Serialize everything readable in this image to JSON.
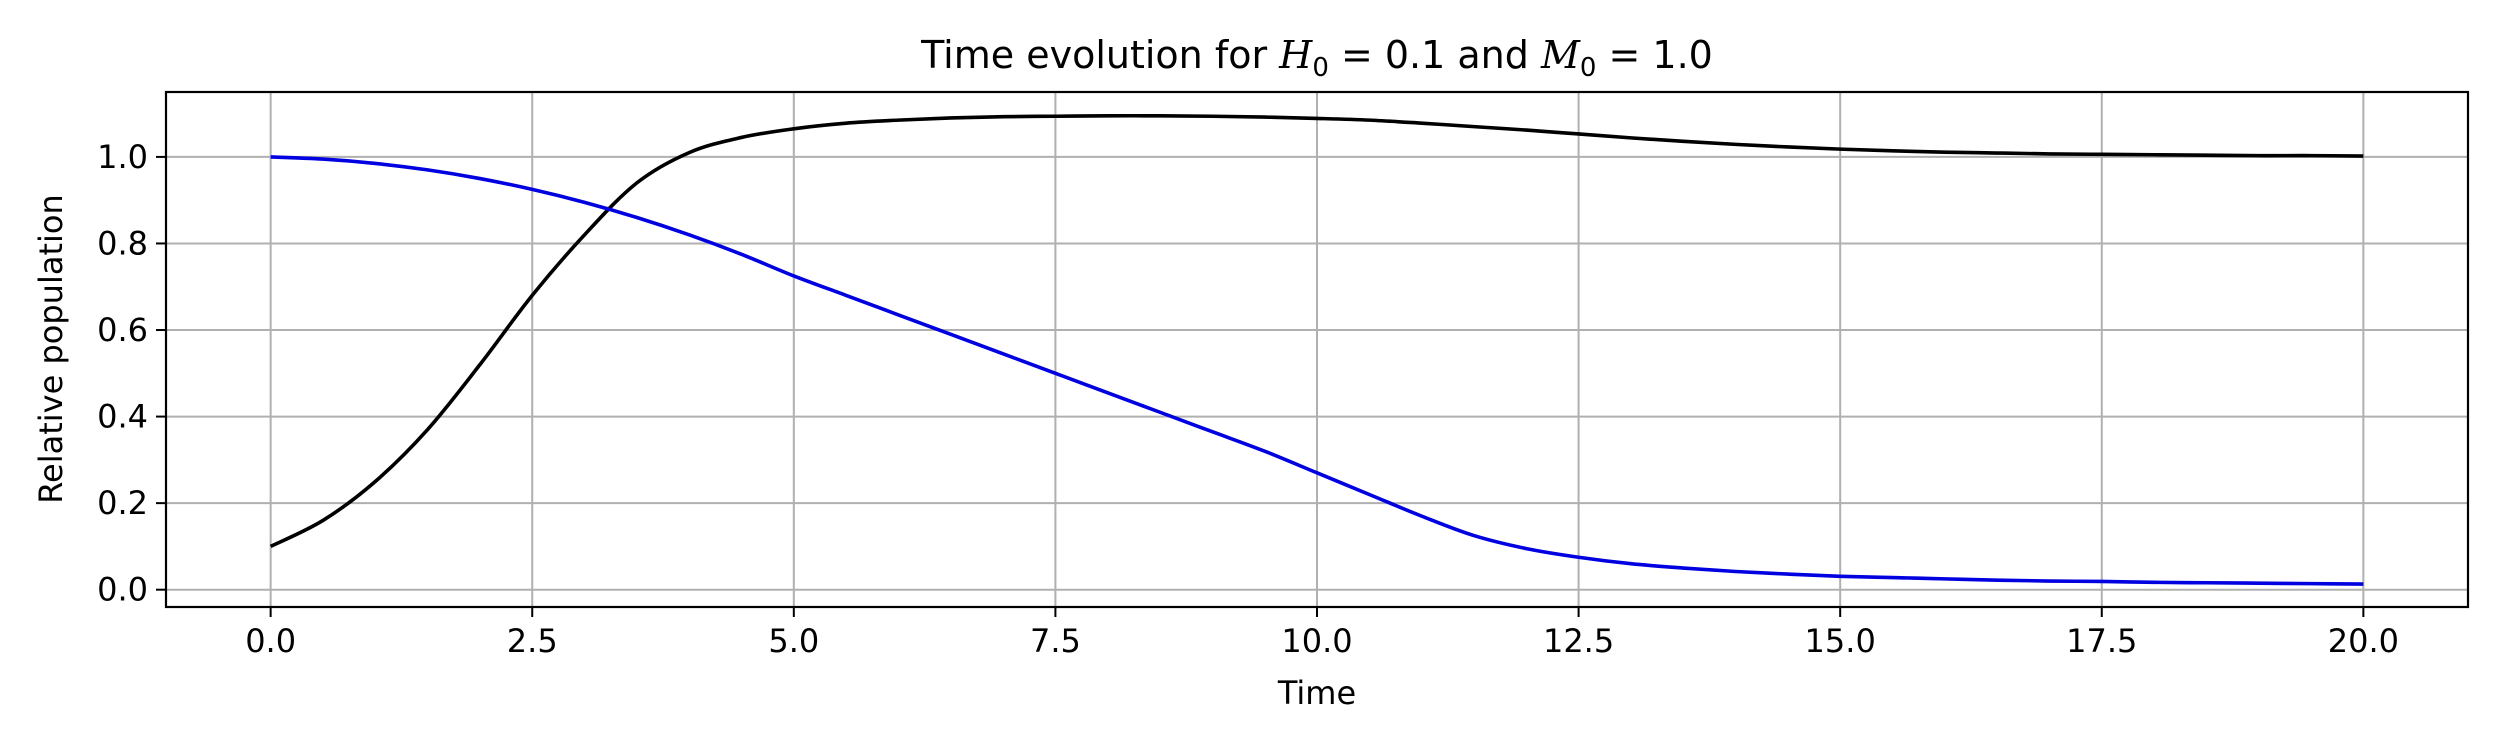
{
  "chart_data": {
    "type": "line",
    "title": {
      "prefix": "Time evolution for ",
      "h_symbol": "H",
      "h_subscript": "0",
      "h_value": " = 0.1 and ",
      "m_symbol": "M",
      "m_subscript": "0",
      "m_value": " = 1.0"
    },
    "xlabel": "Time",
    "ylabel": "Relative population",
    "xlim": [
      -1.0,
      21.0
    ],
    "ylim": [
      -0.04,
      1.15
    ],
    "xticks": [
      0.0,
      2.5,
      5.0,
      7.5,
      10.0,
      12.5,
      15.0,
      17.5,
      20.0
    ],
    "xtick_labels": [
      "0.0",
      "2.5",
      "5.0",
      "7.5",
      "10.0",
      "12.5",
      "15.0",
      "17.5",
      "20.0"
    ],
    "yticks": [
      0.0,
      0.2,
      0.4,
      0.6,
      0.8,
      1.0
    ],
    "ytick_labels": [
      "0.0",
      "0.2",
      "0.4",
      "0.6",
      "0.8",
      "1.0"
    ],
    "grid": true,
    "legend": false,
    "series": [
      {
        "color": "#000000",
        "x": [
          0,
          0.5,
          1,
          1.5,
          2,
          2.5,
          3,
          3.5,
          4,
          4.5,
          5,
          5.5,
          6,
          6.5,
          7,
          7.5,
          8,
          8.5,
          9,
          9.5,
          10,
          10.5,
          11,
          11.5,
          12,
          12.5,
          13,
          13.5,
          14,
          14.5,
          15,
          15.5,
          16,
          16.5,
          17,
          17.5,
          18,
          18.5,
          19,
          19.5,
          20
        ],
        "y": [
          0.1,
          0.16,
          0.25,
          0.37,
          0.52,
          0.68,
          0.82,
          0.94,
          1.01,
          1.045,
          1.065,
          1.078,
          1.085,
          1.09,
          1.093,
          1.094,
          1.095,
          1.095,
          1.094,
          1.092,
          1.089,
          1.085,
          1.078,
          1.07,
          1.062,
          1.053,
          1.044,
          1.036,
          1.029,
          1.023,
          1.018,
          1.014,
          1.011,
          1.009,
          1.007,
          1.006,
          1.005,
          1.004,
          1.003,
          1.003,
          1.002
        ]
      },
      {
        "color": "#0000e0",
        "x": [
          0,
          0.5,
          1,
          1.5,
          2,
          2.5,
          3,
          3.5,
          4,
          4.5,
          5,
          5.5,
          6,
          6.5,
          7,
          7.5,
          8,
          8.5,
          9,
          9.5,
          10,
          10.5,
          11,
          11.5,
          12,
          12.5,
          13,
          13.5,
          14,
          14.5,
          15,
          15.5,
          16,
          16.5,
          17,
          17.5,
          18,
          18.5,
          19,
          19.5,
          20
        ],
        "y": [
          1.0,
          0.995,
          0.985,
          0.97,
          0.95,
          0.925,
          0.895,
          0.86,
          0.82,
          0.775,
          0.725,
          0.68,
          0.635,
          0.59,
          0.545,
          0.5,
          0.455,
          0.41,
          0.365,
          0.32,
          0.27,
          0.22,
          0.17,
          0.125,
          0.095,
          0.075,
          0.06,
          0.05,
          0.042,
          0.036,
          0.031,
          0.028,
          0.025,
          0.022,
          0.02,
          0.019,
          0.017,
          0.016,
          0.015,
          0.014,
          0.013
        ]
      }
    ]
  }
}
